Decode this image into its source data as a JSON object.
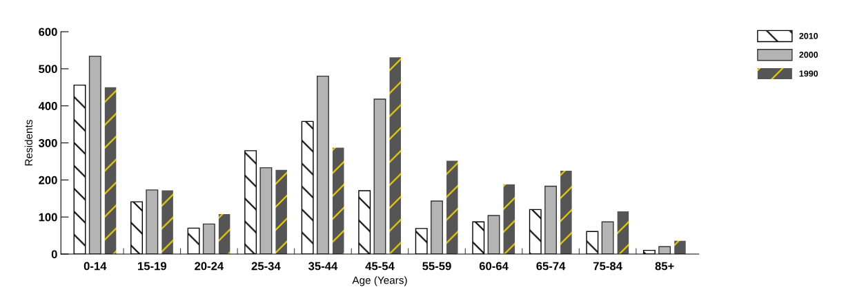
{
  "chart_data": {
    "type": "bar",
    "xlabel": "Age (Years)",
    "ylabel": "Residents",
    "categories": [
      "0-14",
      "15-19",
      "20-24",
      "25-34",
      "35-44",
      "45-54",
      "55-59",
      "60-64",
      "65-74",
      "75-84",
      "85+"
    ],
    "series": [
      {
        "name": "2010",
        "color": "#000000",
        "values": [
          456,
          141,
          70,
          279,
          358,
          171,
          69,
          87,
          120,
          61,
          10
        ]
      },
      {
        "name": "2000",
        "color": "#b4b4b4",
        "values": [
          534,
          173,
          81,
          233,
          480,
          418,
          143,
          104,
          183,
          87,
          20
        ]
      },
      {
        "name": "1990",
        "color": "#555555",
        "values": [
          450,
          172,
          108,
          227,
          287,
          531,
          252,
          188,
          225,
          115,
          36
        ]
      }
    ],
    "ylim": [
      0,
      600
    ],
    "yticks": [
      0,
      100,
      200,
      300,
      400,
      500,
      600
    ],
    "grid": false,
    "legend": "top right"
  }
}
